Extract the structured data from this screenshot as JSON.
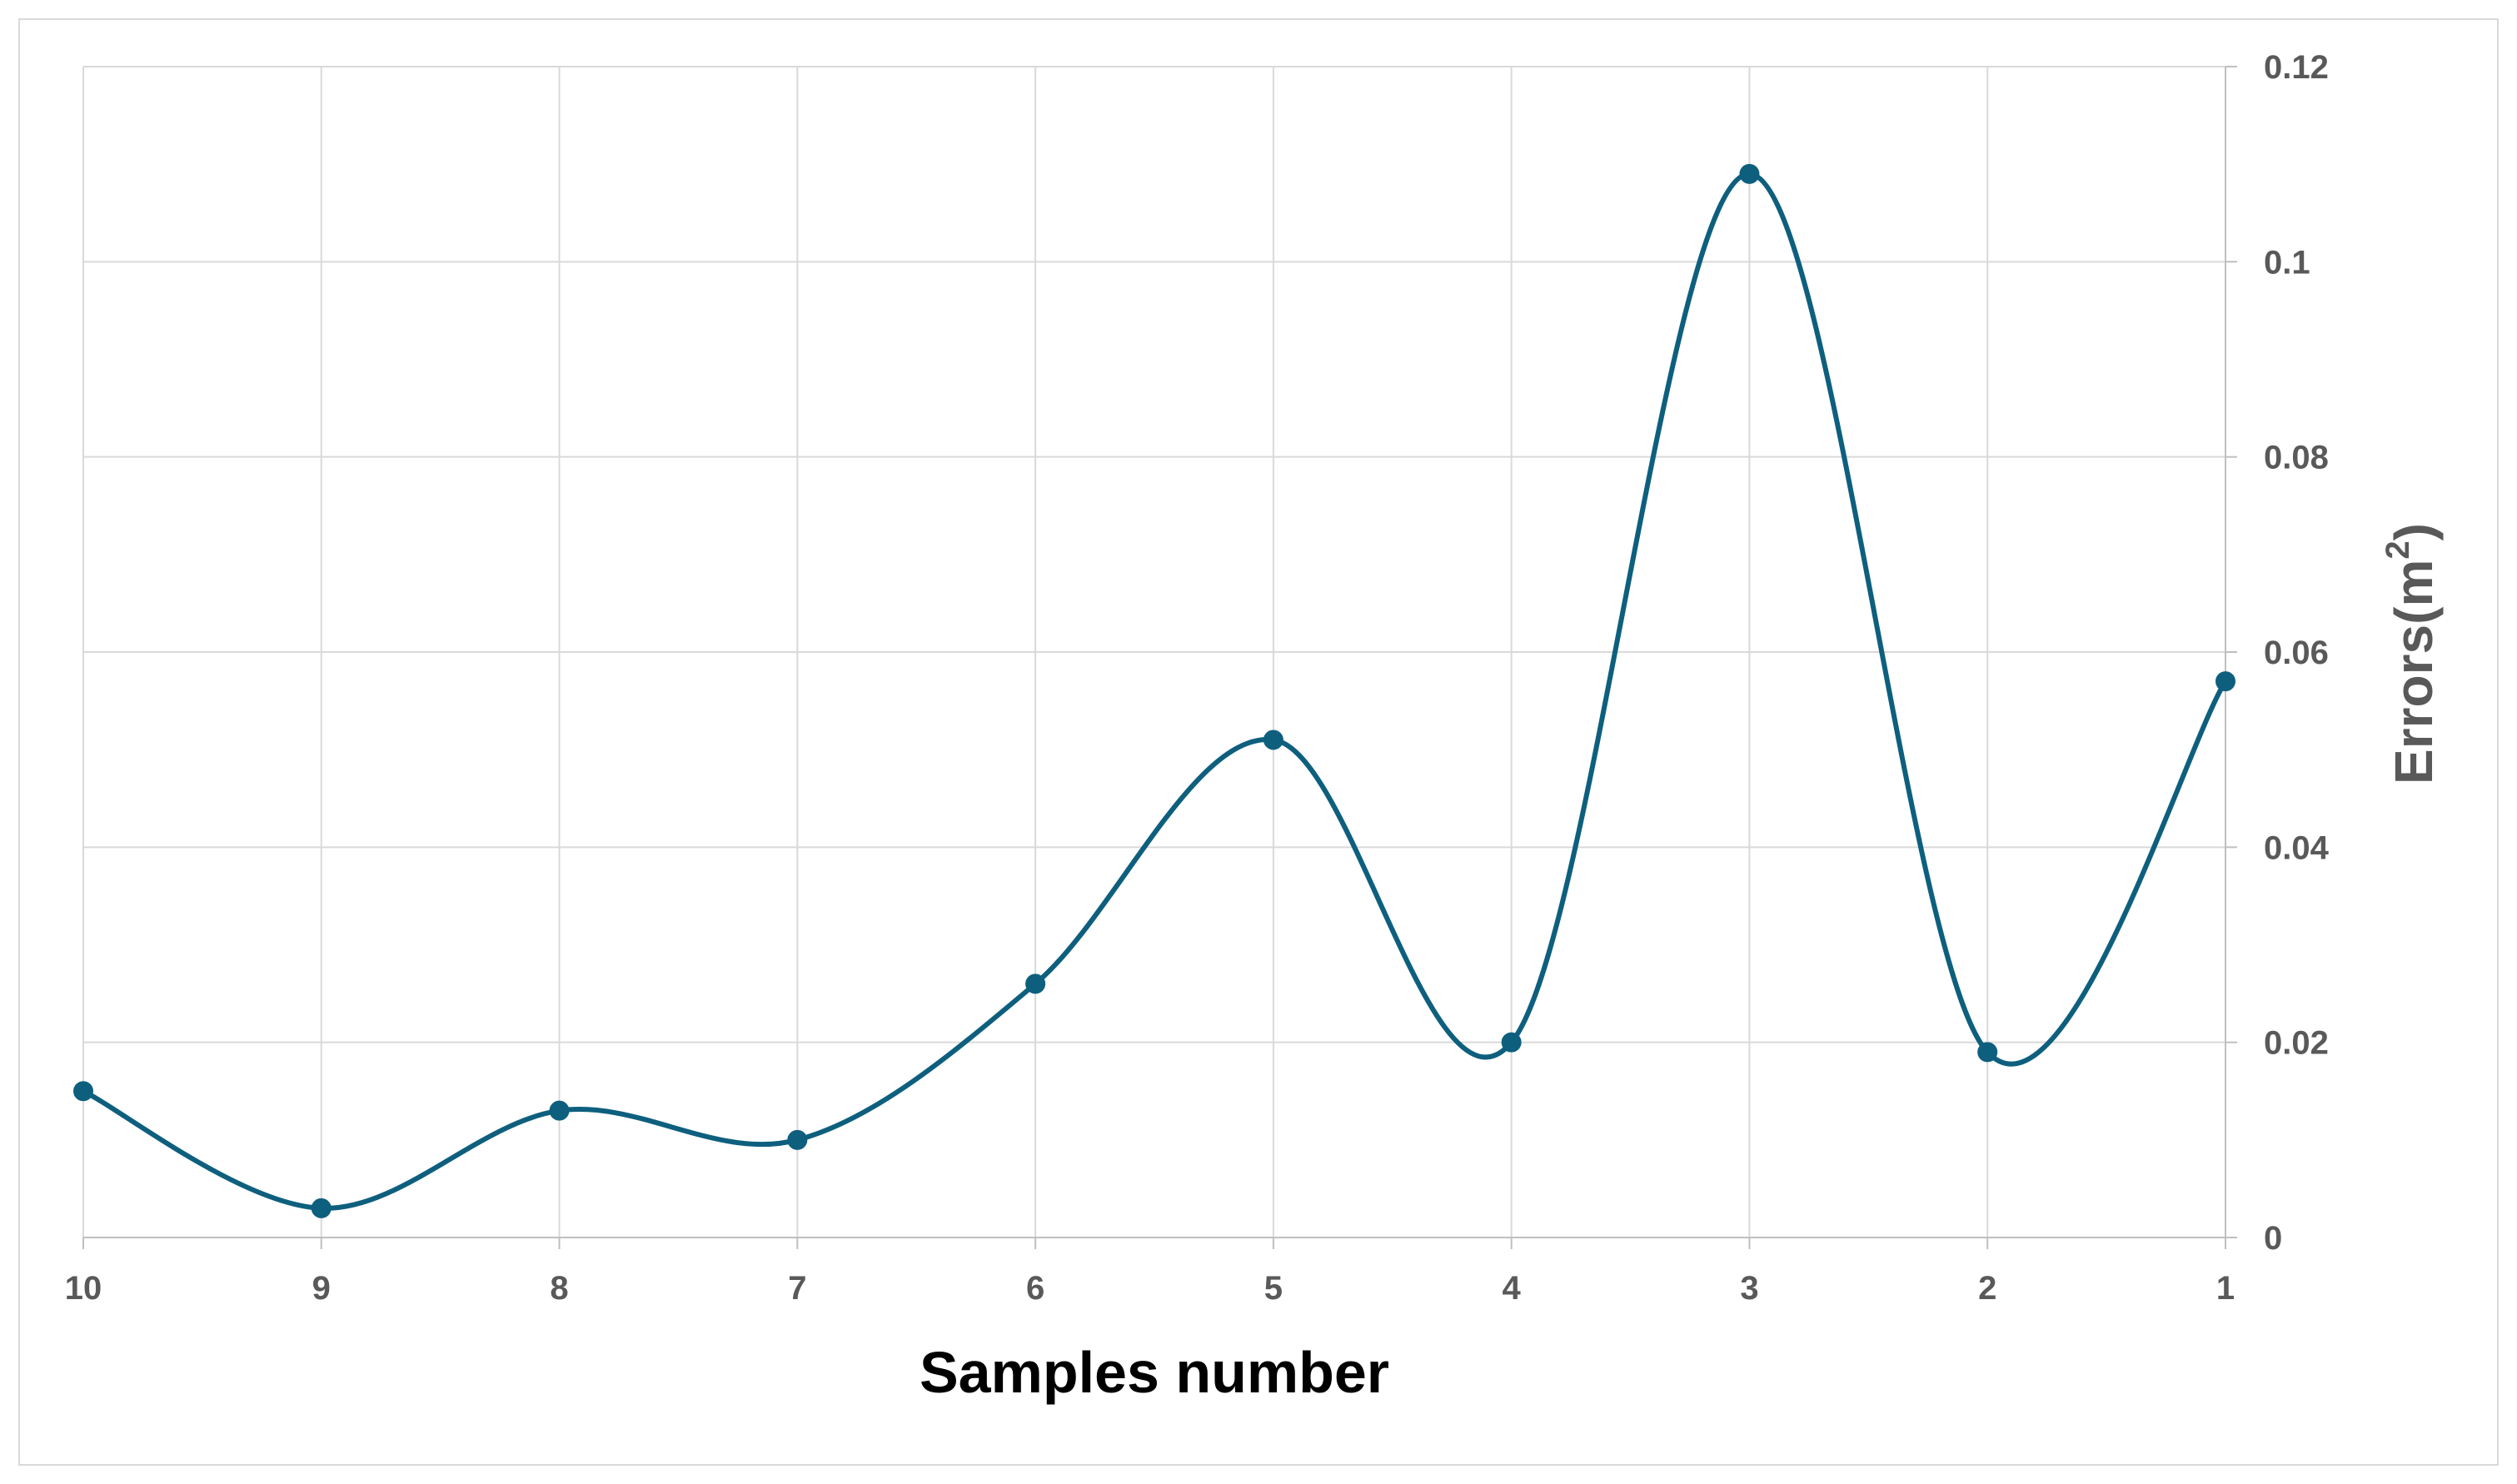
{
  "chart_data": {
    "type": "line",
    "title": "",
    "xlabel": "Samples number",
    "ylabel_base": "Errors(m",
    "ylabel_sup": "2",
    "ylabel_close": ")",
    "x_reversed": true,
    "x": [
      "10",
      "9",
      "8",
      "7",
      "6",
      "5",
      "4",
      "3",
      "2",
      "1"
    ],
    "series": [
      {
        "values": [
          0.015,
          0.003,
          0.013,
          0.01,
          0.026,
          0.051,
          0.02,
          0.109,
          0.019,
          0.057
        ],
        "color": "#0e5f7e",
        "smooth": true,
        "markers": true
      }
    ],
    "ylim": [
      0,
      0.12
    ],
    "yticks": [
      "0",
      "0.02",
      "0.04",
      "0.06",
      "0.08",
      "0.1",
      "0.12"
    ],
    "ytick_values": [
      0,
      0.02,
      0.04,
      0.06,
      0.08,
      0.1,
      0.12
    ],
    "y_axis_side": "right",
    "grid": true,
    "legend": false
  }
}
